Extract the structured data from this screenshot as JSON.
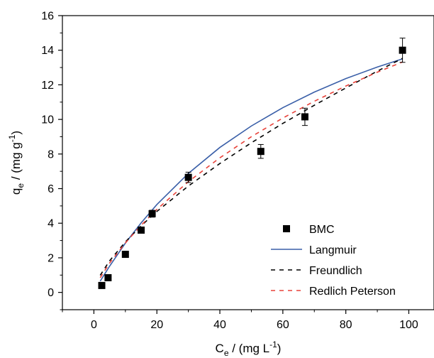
{
  "chart_data": {
    "type": "scatter",
    "xlabel": {
      "main": "C",
      "sub": "e",
      "rest": " / (mg L",
      "sup": "-1",
      "end": ")"
    },
    "ylabel": {
      "main": "q",
      "sub": "e",
      "rest": " / (mg g",
      "sup": "-1",
      "end": ")"
    },
    "xlim": [
      -10,
      108
    ],
    "ylim": [
      -1,
      16
    ],
    "xticks": [
      0,
      20,
      40,
      60,
      80,
      100
    ],
    "yticks": [
      0,
      2,
      4,
      6,
      8,
      10,
      12,
      14,
      16
    ],
    "grid": false,
    "legend_position": "bottom-right",
    "series": [
      {
        "name": "BMC",
        "kind": "scatter",
        "marker": "square",
        "color": "#000000",
        "points": [
          {
            "x": 2.5,
            "y": 0.4,
            "err": 0.05
          },
          {
            "x": 4.5,
            "y": 0.85,
            "err": 0.05
          },
          {
            "x": 10.0,
            "y": 2.2,
            "err": 0.1
          },
          {
            "x": 15.0,
            "y": 3.6,
            "err": 0.1
          },
          {
            "x": 18.5,
            "y": 4.55,
            "err": 0.2
          },
          {
            "x": 30.0,
            "y": 6.65,
            "err": 0.3
          },
          {
            "x": 53.0,
            "y": 8.15,
            "err": 0.4
          },
          {
            "x": 67.0,
            "y": 10.15,
            "err": 0.5
          },
          {
            "x": 98.0,
            "y": 14.0,
            "err": 0.7
          }
        ]
      },
      {
        "name": "Langmuir",
        "kind": "line",
        "dash": "solid",
        "color": "#3a5fa8",
        "x": [
          2,
          5,
          10,
          15,
          20,
          30,
          40,
          50,
          60,
          70,
          80,
          90,
          98
        ],
        "y": [
          0.65,
          1.52,
          2.85,
          4.02,
          5.08,
          6.88,
          8.38,
          9.62,
          10.68,
          11.58,
          12.36,
          13.03,
          13.5
        ]
      },
      {
        "name": "Freundlich",
        "kind": "line",
        "dash": "dash-wide",
        "color": "#000000",
        "x": [
          2,
          5,
          10,
          15,
          20,
          30,
          40,
          50,
          60,
          70,
          80,
          90,
          98
        ],
        "y": [
          0.99,
          1.83,
          2.92,
          3.85,
          4.68,
          6.15,
          7.45,
          8.65,
          9.77,
          10.82,
          11.82,
          12.79,
          13.53
        ]
      },
      {
        "name": "Redlich Peterson",
        "kind": "line",
        "dash": "dash-wide",
        "color": "#e8423a",
        "x": [
          2,
          5,
          10,
          15,
          20,
          30,
          40,
          50,
          60,
          70,
          80,
          90,
          98
        ],
        "y": [
          0.85,
          1.7,
          2.86,
          3.88,
          4.8,
          6.4,
          7.78,
          9.0,
          10.08,
          11.05,
          11.93,
          12.73,
          13.32
        ]
      }
    ]
  }
}
